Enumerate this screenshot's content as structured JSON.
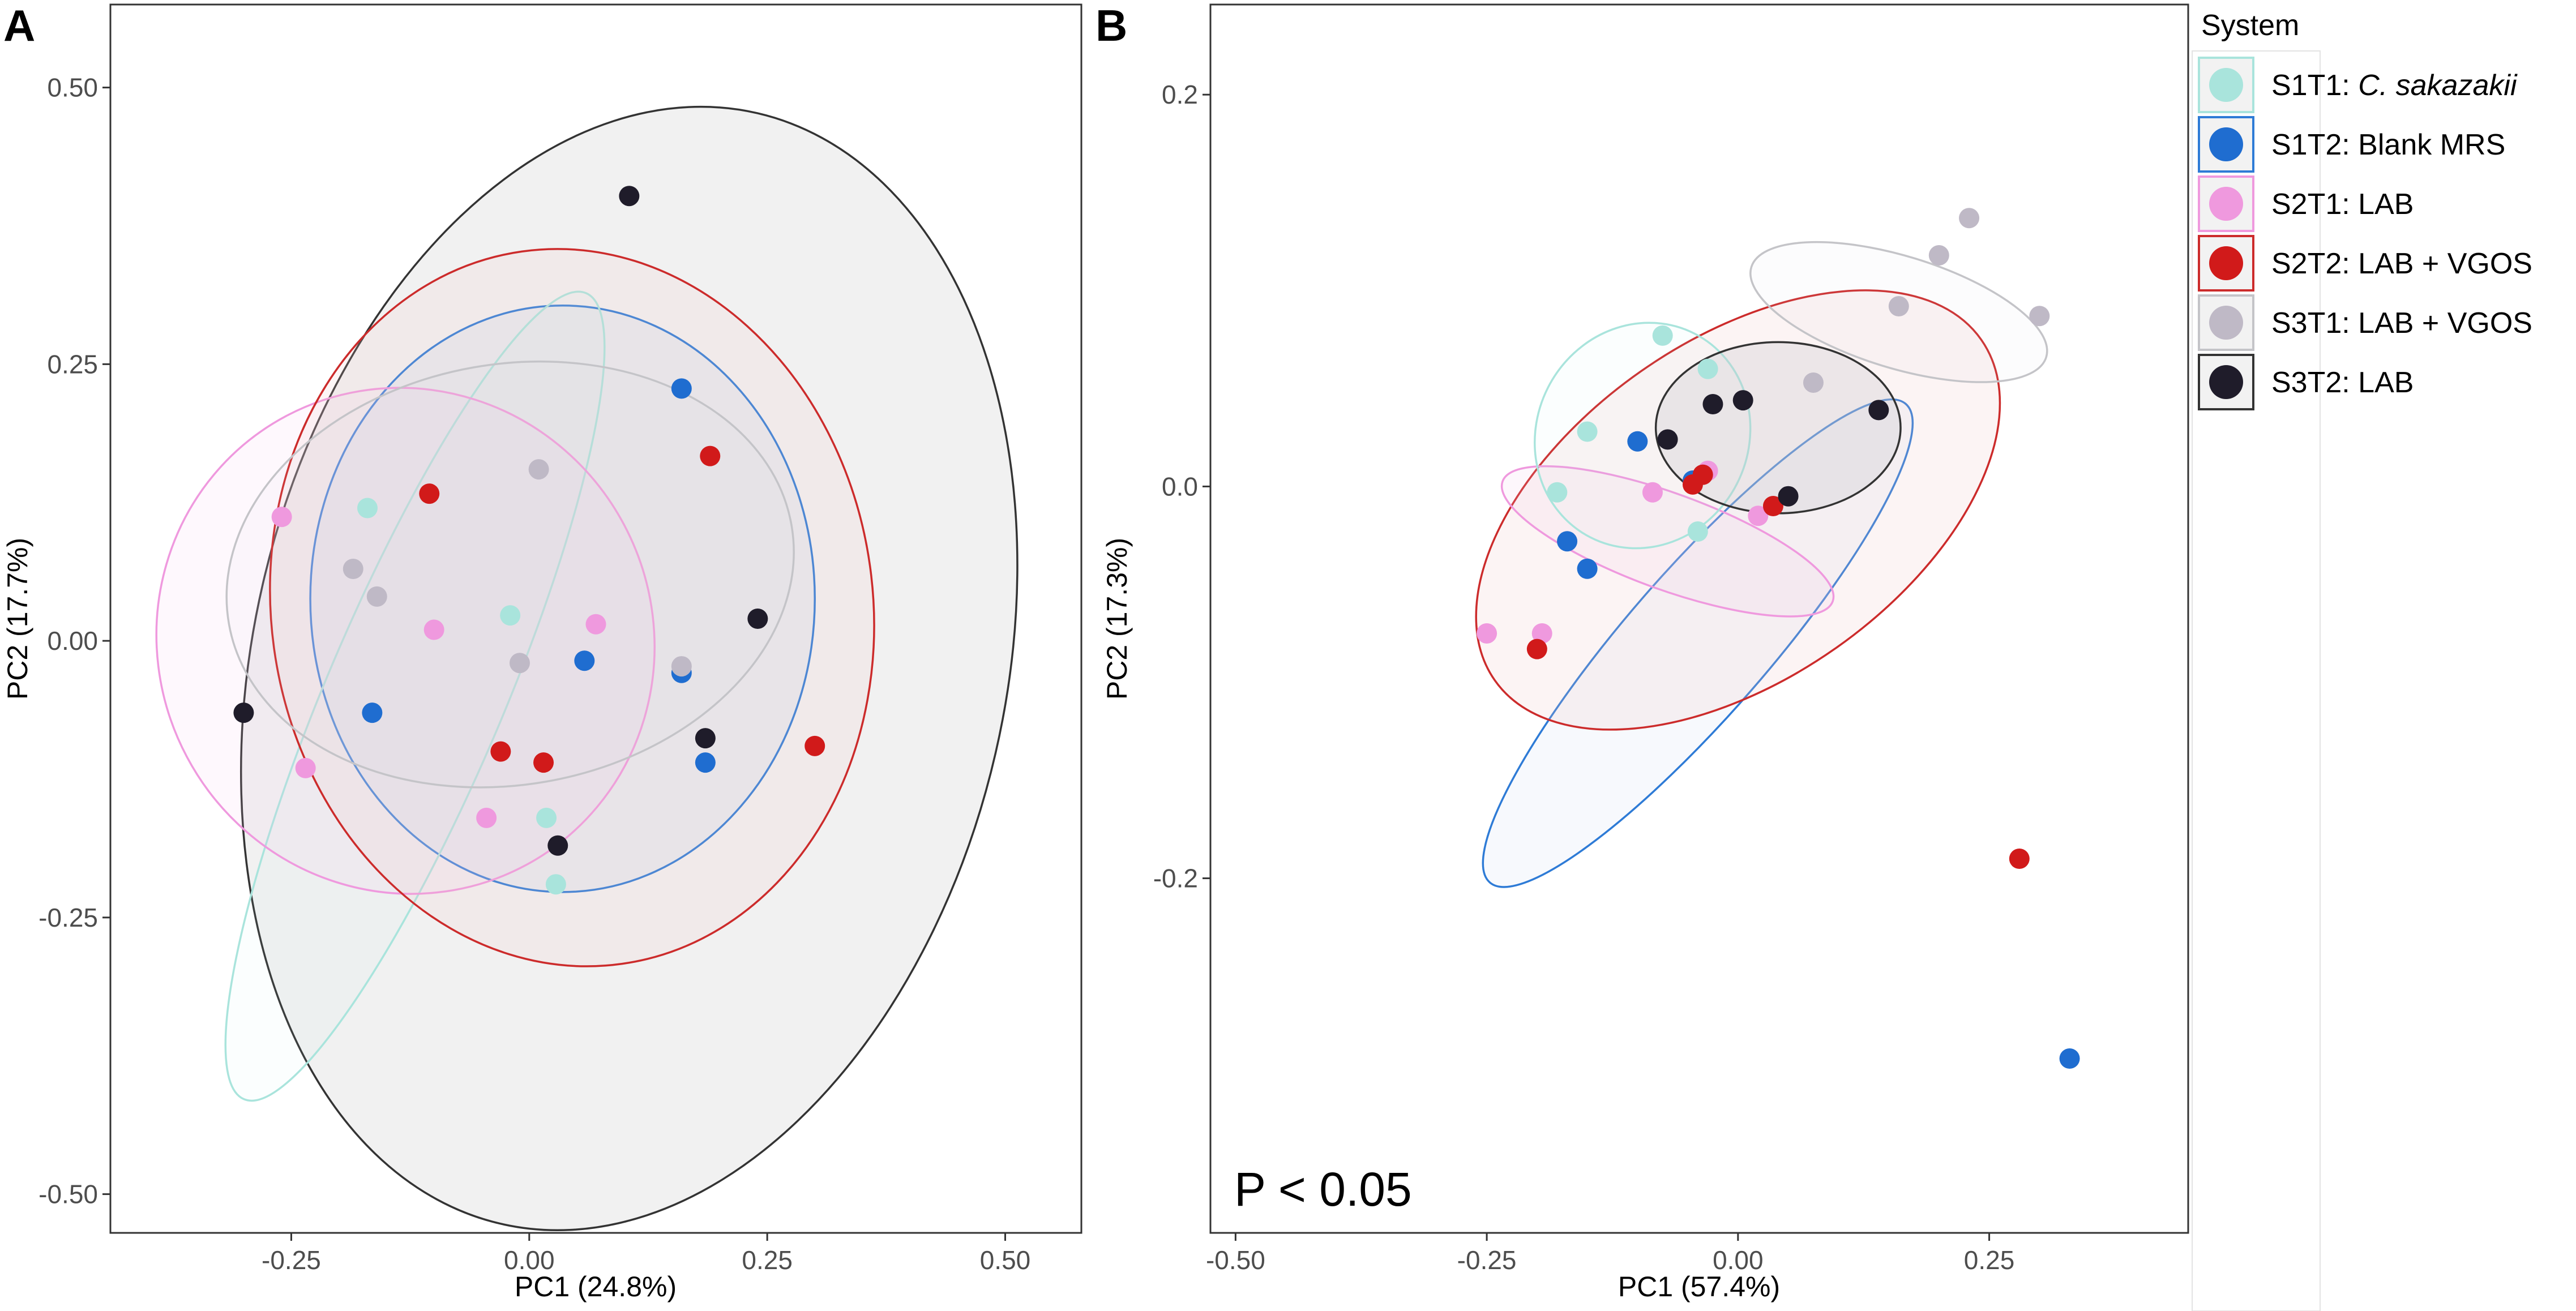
{
  "legend": {
    "title": "System",
    "entries": [
      {
        "key": "S1T1",
        "label": "S1T1: ",
        "italic": "C. sakazakii",
        "color": "#a9e4dc",
        "border": "#a9e4dc"
      },
      {
        "key": "S1T2",
        "label": "S1T2: Blank MRS",
        "italic": "",
        "color": "#1f6dd0",
        "border": "#2e7bd6"
      },
      {
        "key": "S2T1",
        "label": "S2T1: LAB",
        "italic": "",
        "color": "#ef99de",
        "border": "#ef99de"
      },
      {
        "key": "S2T2",
        "label": "S2T2: LAB + VGOS",
        "italic": "",
        "color": "#d11a1a",
        "border": "#cc2b2b"
      },
      {
        "key": "S3T1",
        "label": "S3T1: LAB + VGOS",
        "italic": "",
        "color": "#bfb9c6",
        "border": "#c4c4c8"
      },
      {
        "key": "S3T2",
        "label": "S3T2: LAB",
        "italic": "",
        "color": "#1f1c2a",
        "border": "#333333"
      }
    ]
  },
  "chart_data": [
    {
      "panel": "A",
      "type": "scatter",
      "xlabel": "PC1 (24.8%)",
      "ylabel": "PC2 (17.7%)",
      "xlim": [
        -0.44,
        0.58
      ],
      "ylim": [
        -0.535,
        0.575
      ],
      "xticks": [
        -0.25,
        0,
        0.25,
        0.5
      ],
      "xtick_labels": [
        "-0.25",
        "0.00",
        "0.25",
        "0.50"
      ],
      "yticks": [
        -0.5,
        -0.25,
        0,
        0.25,
        0.5
      ],
      "ytick_labels": [
        "-0.50",
        "-0.25",
        "0.00",
        "0.25",
        "0.50"
      ],
      "annotation": "",
      "series": [
        {
          "name": "S1T1",
          "points": [
            [
              -0.17,
              0.12
            ],
            [
              -0.02,
              0.023
            ],
            [
              0.018,
              -0.16
            ],
            [
              0.028,
              -0.22
            ]
          ]
        },
        {
          "name": "S1T2",
          "points": [
            [
              0.16,
              0.228
            ],
            [
              0.058,
              -0.018
            ],
            [
              0.16,
              -0.029
            ],
            [
              -0.165,
              -0.065
            ],
            [
              0.185,
              -0.11
            ]
          ]
        },
        {
          "name": "S2T1",
          "points": [
            [
              -0.26,
              0.112
            ],
            [
              -0.1,
              0.01
            ],
            [
              0.07,
              0.015
            ],
            [
              -0.235,
              -0.115
            ],
            [
              -0.045,
              -0.16
            ]
          ]
        },
        {
          "name": "S2T2",
          "points": [
            [
              -0.105,
              0.133
            ],
            [
              0.19,
              0.167
            ],
            [
              -0.03,
              -0.1
            ],
            [
              0.015,
              -0.11
            ],
            [
              0.3,
              -0.095
            ]
          ]
        },
        {
          "name": "S3T1",
          "points": [
            [
              0.01,
              0.155
            ],
            [
              -0.185,
              0.065
            ],
            [
              -0.16,
              0.04
            ],
            [
              -0.01,
              -0.02
            ],
            [
              0.16,
              -0.023
            ]
          ]
        },
        {
          "name": "S3T2",
          "points": [
            [
              0.105,
              0.402
            ],
            [
              -0.3,
              -0.065
            ],
            [
              0.24,
              0.02
            ],
            [
              0.185,
              -0.088
            ],
            [
              0.03,
              -0.185
            ]
          ]
        }
      ],
      "ellipses": [
        {
          "name": "S3T2",
          "cx": 0.105,
          "cy": -0.025,
          "rx": 0.395,
          "ry": 0.515,
          "angle": 13,
          "fill_opacity": 0.32,
          "fill": "#d5d5d5"
        },
        {
          "name": "S1T2",
          "cx": 0.035,
          "cy": 0.038,
          "rx": 0.265,
          "ry": 0.265,
          "angle": 0,
          "fill_opacity": 0.1,
          "fill": "#8aaee0"
        },
        {
          "name": "S1T1",
          "cx": -0.12,
          "cy": -0.05,
          "rx": 0.46,
          "ry": 0.08,
          "angle": -67,
          "fill_opacity": 0.06,
          "fill": "#bdece6"
        },
        {
          "name": "S2T1",
          "cx": -0.13,
          "cy": 0.0,
          "rx": 0.26,
          "ry": 0.23,
          "angle": -28,
          "fill_opacity": 0.12,
          "fill": "#f3c4ec"
        },
        {
          "name": "S2T2",
          "cx": 0.045,
          "cy": 0.03,
          "rx": 0.316,
          "ry": 0.325,
          "angle": -8,
          "fill_opacity": 0.16,
          "fill": "#f2c9c9"
        },
        {
          "name": "S3T1",
          "cx": -0.02,
          "cy": 0.06,
          "rx": 0.3,
          "ry": 0.19,
          "angle": -10,
          "fill_opacity": 0.08,
          "fill": "#dedce2"
        }
      ]
    },
    {
      "panel": "B",
      "type": "scatter",
      "xlabel": "PC1 (57.4%)",
      "ylabel": "PC2 (17.3%)",
      "xlim": [
        -0.525,
        0.448
      ],
      "ylim": [
        -0.381,
        0.246
      ],
      "xticks": [
        -0.5,
        -0.25,
        0,
        0.25
      ],
      "xtick_labels": [
        "-0.50",
        "-0.25",
        "0.00",
        "0.25"
      ],
      "yticks": [
        -0.2,
        0,
        0.2
      ],
      "ytick_labels": [
        "-0.2",
        "0.0",
        "0.2"
      ],
      "annotation": "P < 0.05",
      "series": [
        {
          "name": "S1T1",
          "points": [
            [
              -0.075,
              0.077
            ],
            [
              -0.03,
              0.06
            ],
            [
              -0.15,
              0.028
            ],
            [
              -0.18,
              -0.003
            ],
            [
              -0.04,
              -0.023
            ]
          ]
        },
        {
          "name": "S1T2",
          "points": [
            [
              -0.1,
              0.023
            ],
            [
              -0.045,
              0.003
            ],
            [
              -0.17,
              -0.028
            ],
            [
              -0.15,
              -0.042
            ],
            [
              0.33,
              -0.292
            ]
          ]
        },
        {
          "name": "S2T1",
          "points": [
            [
              -0.085,
              -0.003
            ],
            [
              -0.03,
              0.008
            ],
            [
              0.02,
              -0.015
            ],
            [
              -0.25,
              -0.075
            ],
            [
              -0.195,
              -0.075
            ]
          ]
        },
        {
          "name": "S2T2",
          "points": [
            [
              -0.045,
              0.001
            ],
            [
              -0.035,
              0.006
            ],
            [
              0.035,
              -0.01
            ],
            [
              -0.2,
              -0.083
            ],
            [
              0.28,
              -0.19
            ]
          ]
        },
        {
          "name": "S3T1",
          "points": [
            [
              0.23,
              0.137
            ],
            [
              0.2,
              0.118
            ],
            [
              0.16,
              0.092
            ],
            [
              0.3,
              0.087
            ],
            [
              0.075,
              0.053
            ]
          ]
        },
        {
          "name": "S3T2",
          "points": [
            [
              -0.025,
              0.042
            ],
            [
              0.005,
              0.044
            ],
            [
              -0.07,
              0.024
            ],
            [
              0.14,
              0.039
            ],
            [
              0.05,
              -0.005
            ]
          ]
        }
      ],
      "ellipses": [
        {
          "name": "S1T2",
          "cx": -0.04,
          "cy": -0.08,
          "rx": 0.3155,
          "ry": 0.0364,
          "angle": -49,
          "fill_opacity": 0.14,
          "fill": "#c6d6f2"
        },
        {
          "name": "S2T2",
          "cx": 0.0,
          "cy": -0.012,
          "rx": 0.2955,
          "ry": 0.0864,
          "angle": -35,
          "fill_opacity": 0.18,
          "fill": "#f0c4c4"
        },
        {
          "name": "S2T1",
          "cx": -0.07,
          "cy": -0.028,
          "rx": 0.1748,
          "ry": 0.0245,
          "angle": 20,
          "fill_opacity": 0.14,
          "fill": "#f3c4ec"
        },
        {
          "name": "S1T1",
          "cx": -0.095,
          "cy": 0.026,
          "rx": 0.1055,
          "ry": 0.0584,
          "angle": 27,
          "fill_opacity": 0.06,
          "fill": "#bdece6"
        },
        {
          "name": "S3T1",
          "cx": 0.16,
          "cy": 0.089,
          "rx": 0.1534,
          "ry": 0.0286,
          "angle": 17,
          "fill_opacity": 0.08,
          "fill": "#dedce2"
        },
        {
          "name": "S3T2",
          "cx": 0.04,
          "cy": 0.03,
          "rx": 0.1218,
          "ry": 0.0437,
          "angle": 0,
          "fill_opacity": 0.3,
          "fill": "#c8c8cc"
        }
      ]
    }
  ]
}
